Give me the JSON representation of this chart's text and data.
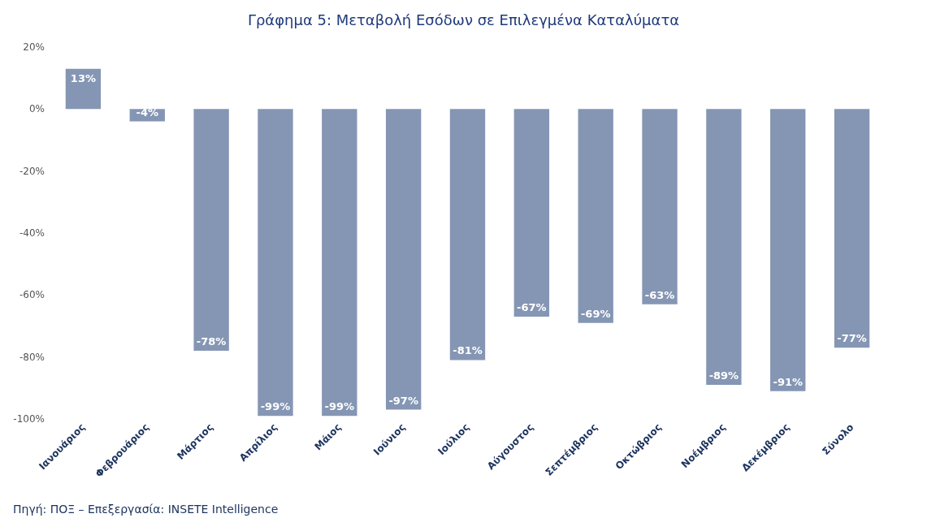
{
  "chart_data": {
    "type": "bar",
    "title": "Γράφημα 5: Μεταβολή Εσόδων σε Επιλεγμένα Καταλύματα",
    "categories": [
      "Ιανουάριος",
      "Φεβρουάριος",
      "Μάρτιος",
      "Απρίλιος",
      "Μάιος",
      "Ιούνιος",
      "Ιούλιος",
      "Αύγουστος",
      "Σεπτέμβριος",
      "Οκτώβριος",
      "Νοέμβριος",
      "Δεκέμβριος",
      "Σύνολο"
    ],
    "values": [
      13,
      -4,
      -78,
      -99,
      -99,
      -97,
      -81,
      -67,
      -69,
      -63,
      -89,
      -91,
      -77
    ],
    "value_labels": [
      "13%",
      "-4%",
      "-78%",
      "-99%",
      "-99%",
      "-97%",
      "-81%",
      "-67%",
      "-69%",
      "-63%",
      "-89%",
      "-91%",
      "-77%"
    ],
    "color": "#8596b4",
    "ylim": [
      -100,
      20
    ],
    "yticks": [
      {
        "value": -100,
        "label": "-100%"
      },
      {
        "value": -80,
        "label": "-80%"
      },
      {
        "value": -60,
        "label": "-60%"
      },
      {
        "value": -40,
        "label": "-40%"
      },
      {
        "value": -20,
        "label": "-20%"
      },
      {
        "value": 0,
        "label": "0%"
      },
      {
        "value": 20,
        "label": "20%"
      }
    ],
    "grid": false,
    "annotations": [
      "Πηγή: ΠΟΞ – Επεξεργασία: INSETE Intelligence"
    ]
  }
}
